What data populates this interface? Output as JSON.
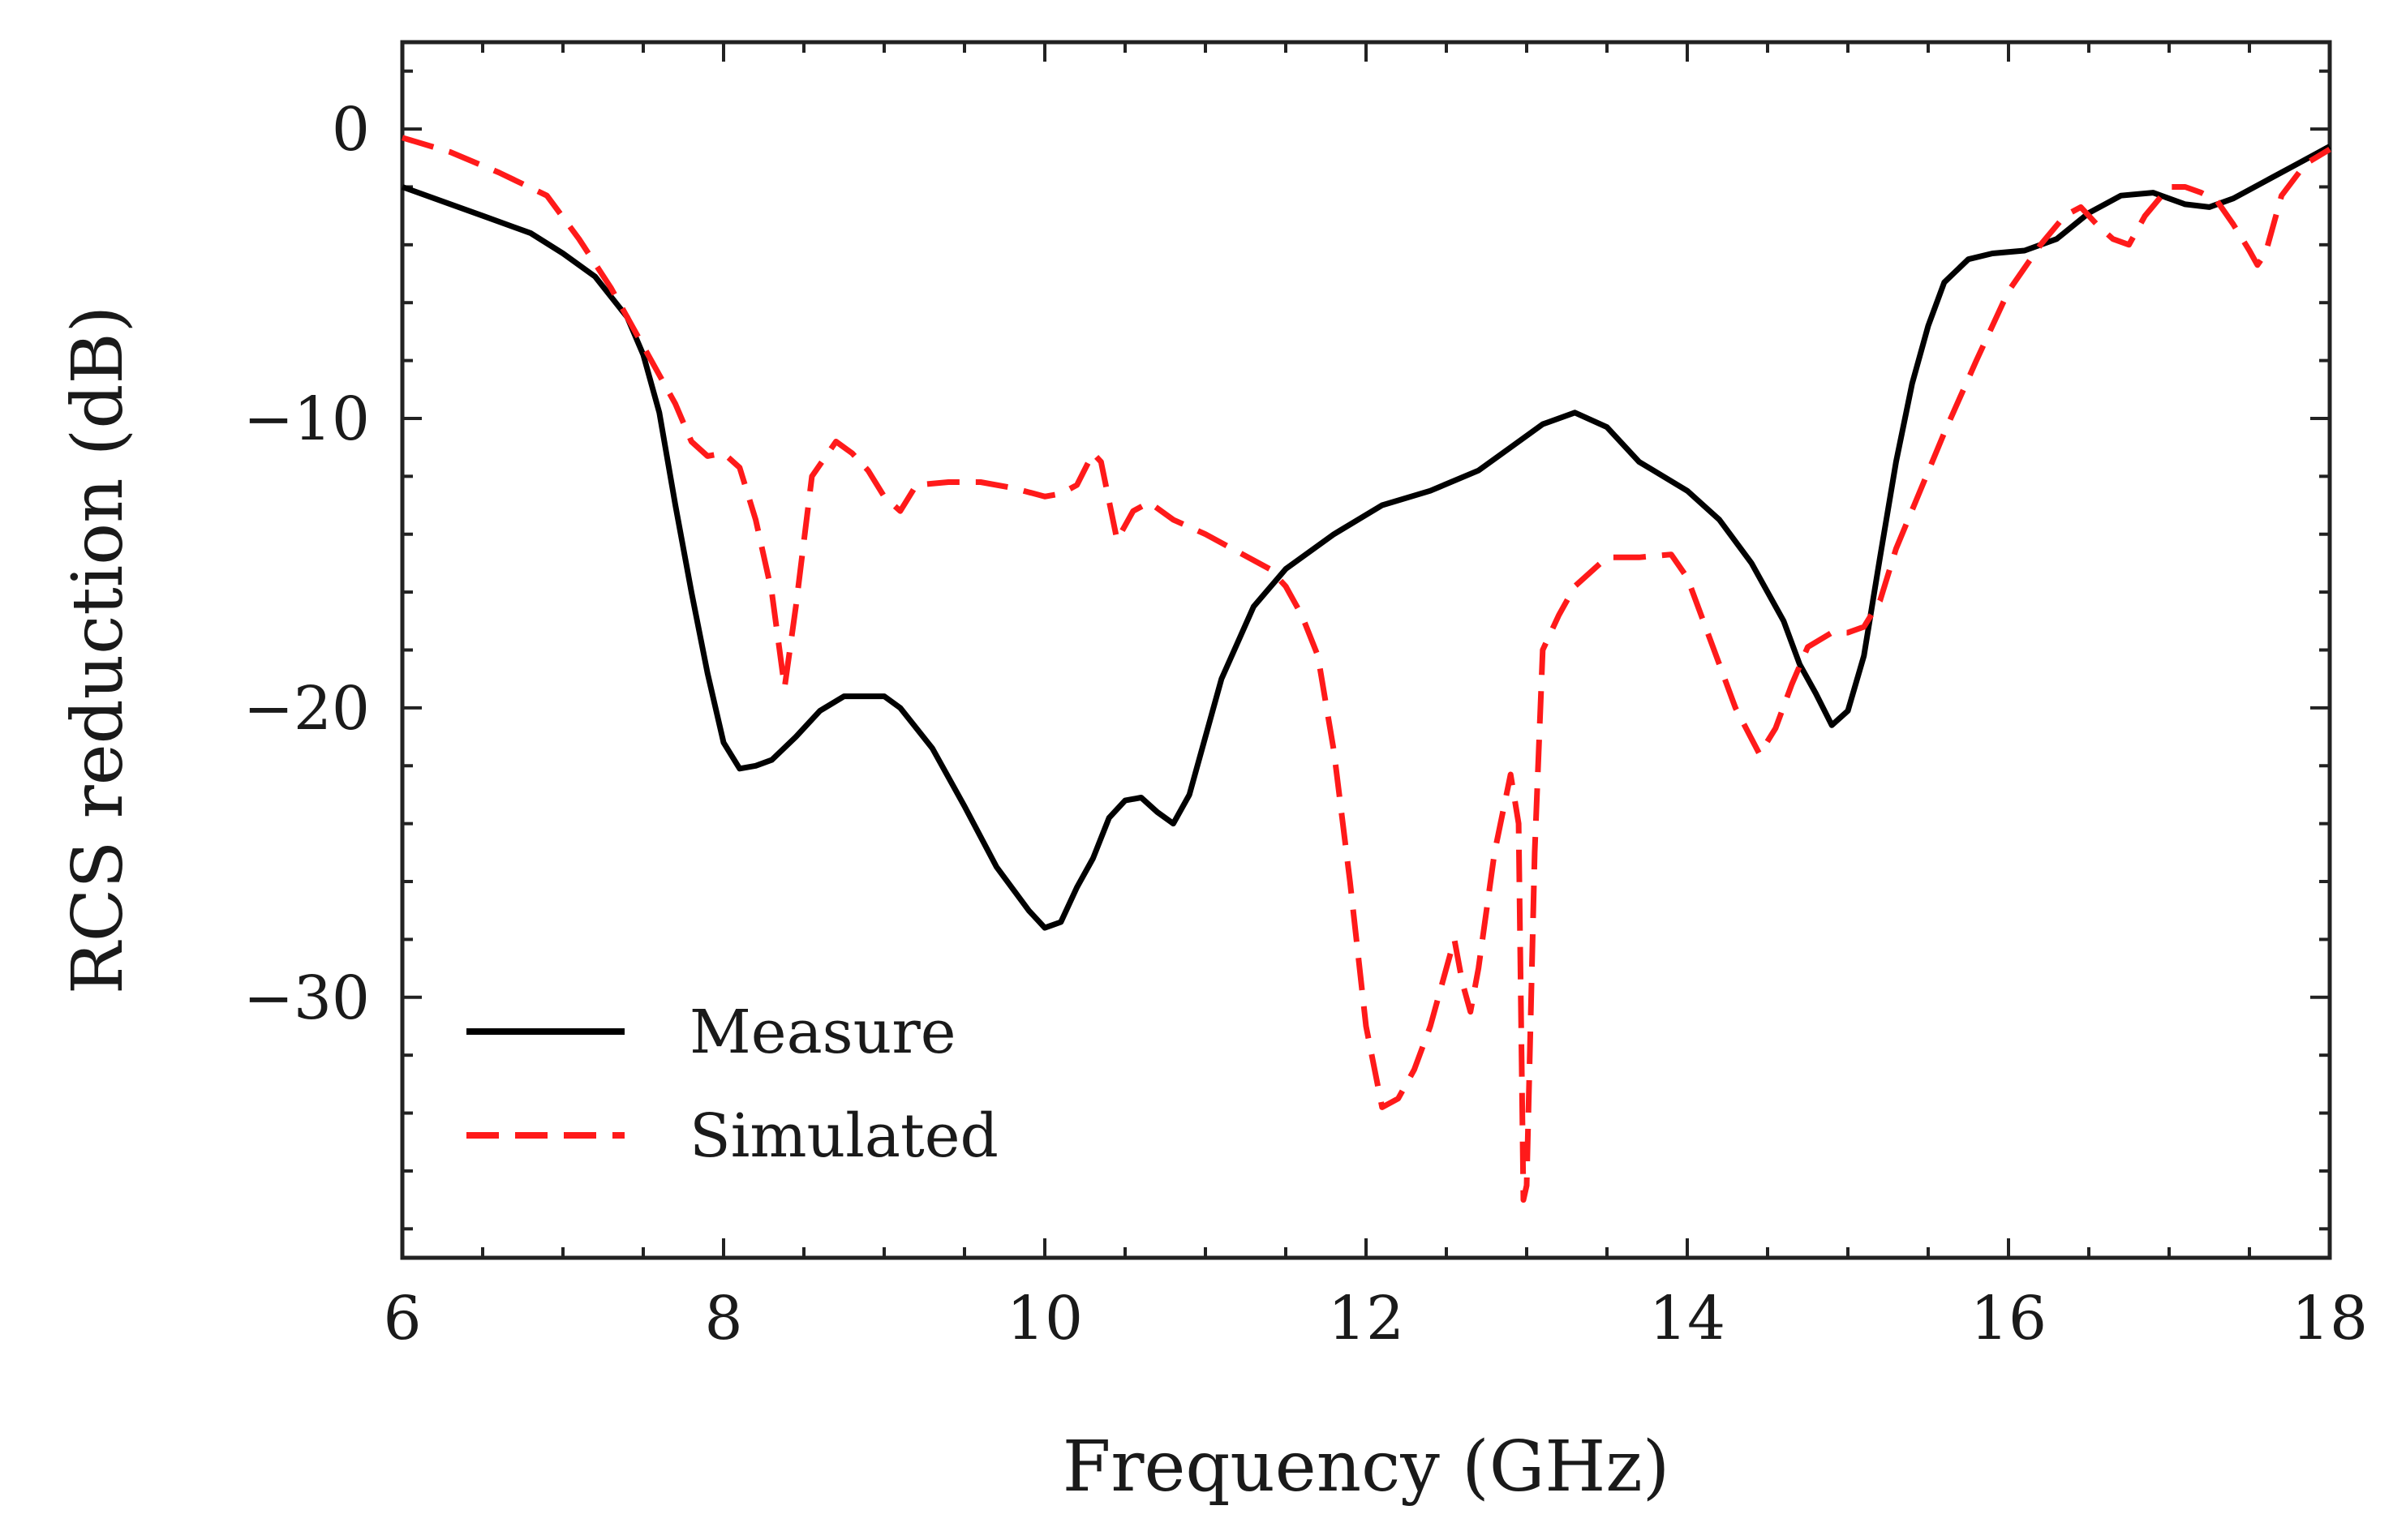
{
  "chart_data": {
    "type": "line",
    "title": "",
    "xlabel": "Frequency (GHz)",
    "ylabel": "RCS reduction (dB)",
    "xlim": [
      6,
      18
    ],
    "ylim": [
      -39,
      3
    ],
    "xticks": [
      6,
      8,
      10,
      12,
      14,
      16,
      18
    ],
    "xtick_labels": [
      "6",
      "8",
      "10",
      "12",
      "14",
      "16",
      "18"
    ],
    "yticks": [
      0,
      -10,
      -20,
      -30
    ],
    "ytick_labels": [
      "0",
      "−10",
      "−20",
      "−30"
    ],
    "x_minor_step": 0.5,
    "y_minor_step": 2,
    "grid": false,
    "legend_position": "lower-left",
    "series": [
      {
        "name": "Measure",
        "color": "#000000",
        "line_style": "solid",
        "x": [
          6.0,
          6.5,
          6.8,
          7.0,
          7.2,
          7.4,
          7.5,
          7.6,
          7.7,
          7.8,
          7.9,
          8.0,
          8.1,
          8.2,
          8.3,
          8.45,
          8.6,
          8.75,
          9.0,
          9.1,
          9.3,
          9.5,
          9.7,
          9.9,
          10.0,
          10.1,
          10.2,
          10.3,
          10.4,
          10.5,
          10.6,
          10.7,
          10.8,
          10.9,
          11.0,
          11.1,
          11.3,
          11.5,
          11.8,
          12.1,
          12.4,
          12.7,
          12.9,
          13.1,
          13.3,
          13.5,
          13.7,
          14.0,
          14.2,
          14.4,
          14.6,
          14.7,
          14.8,
          14.9,
          15.0,
          15.1,
          15.2,
          15.3,
          15.4,
          15.5,
          15.6,
          15.75,
          15.9,
          16.1,
          16.3,
          16.5,
          16.7,
          16.9,
          17.1,
          17.25,
          17.4,
          17.6,
          17.8,
          18.0
        ],
        "y": [
          -2.0,
          -3.0,
          -3.6,
          -4.3,
          -5.1,
          -6.5,
          -7.8,
          -9.8,
          -13.0,
          -16.0,
          -18.8,
          -21.2,
          -22.1,
          -22.0,
          -21.8,
          -21.0,
          -20.1,
          -19.6,
          -19.6,
          -20.0,
          -21.4,
          -23.4,
          -25.5,
          -27.0,
          -27.6,
          -27.4,
          -26.2,
          -25.2,
          -23.8,
          -23.2,
          -23.1,
          -23.6,
          -24.0,
          -23.0,
          -21.0,
          -19.0,
          -16.5,
          -15.2,
          -14.0,
          -13.0,
          -12.5,
          -11.8,
          -11.0,
          -10.2,
          -9.8,
          -10.3,
          -11.5,
          -12.5,
          -13.5,
          -15.0,
          -17.0,
          -18.5,
          -19.5,
          -20.6,
          -20.1,
          -18.2,
          -14.8,
          -11.5,
          -8.8,
          -6.8,
          -5.3,
          -4.5,
          -4.3,
          -4.2,
          -3.8,
          -2.9,
          -2.3,
          -2.2,
          -2.6,
          -2.7,
          -2.4,
          -1.8,
          -1.2,
          -0.6
        ]
      },
      {
        "name": "Simulated",
        "color": "#ff1a1a",
        "line_style": "dashed",
        "x": [
          6.0,
          6.3,
          6.6,
          6.9,
          7.1,
          7.3,
          7.5,
          7.6,
          7.7,
          7.8,
          7.9,
          8.0,
          8.1,
          8.2,
          8.3,
          8.38,
          8.45,
          8.55,
          8.7,
          8.8,
          8.9,
          9.0,
          9.1,
          9.2,
          9.4,
          9.6,
          9.8,
          10.0,
          10.1,
          10.2,
          10.3,
          10.35,
          10.45,
          10.55,
          10.65,
          10.8,
          11.0,
          11.2,
          11.4,
          11.5,
          11.6,
          11.7,
          11.8,
          11.9,
          12.0,
          12.1,
          12.2,
          12.3,
          12.4,
          12.5,
          12.55,
          12.6,
          12.65,
          12.7,
          12.8,
          12.9,
          12.95,
          12.98,
          13.0,
          13.05,
          13.1,
          13.2,
          13.3,
          13.5,
          13.7,
          13.9,
          14.0,
          14.1,
          14.2,
          14.3,
          14.45,
          14.55,
          14.65,
          14.75,
          14.9,
          15.0,
          15.1,
          15.2,
          15.3,
          15.45,
          15.6,
          15.8,
          16.0,
          16.2,
          16.35,
          16.45,
          16.55,
          16.65,
          16.75,
          16.85,
          17.0,
          17.1,
          17.2,
          17.3,
          17.4,
          17.5,
          17.55,
          17.6,
          17.7,
          17.85,
          18.0
        ],
        "y": [
          -0.3,
          -0.8,
          -1.5,
          -2.3,
          -3.8,
          -5.5,
          -7.5,
          -8.5,
          -9.5,
          -10.8,
          -11.3,
          -11.2,
          -11.7,
          -13.5,
          -16.0,
          -19.3,
          -16.5,
          -12.0,
          -10.8,
          -11.2,
          -11.8,
          -12.7,
          -13.2,
          -12.3,
          -12.2,
          -12.2,
          -12.4,
          -12.7,
          -12.6,
          -12.3,
          -11.2,
          -11.5,
          -14.2,
          -13.2,
          -12.9,
          -13.5,
          -14.0,
          -14.6,
          -15.2,
          -15.8,
          -16.8,
          -18.2,
          -21.5,
          -26.0,
          -31.0,
          -33.8,
          -33.5,
          -32.5,
          -31.0,
          -29.0,
          -28.0,
          -29.5,
          -30.5,
          -29.0,
          -25.0,
          -22.3,
          -24.0,
          -37.0,
          -36.5,
          -25.0,
          -18.0,
          -16.8,
          -15.8,
          -14.8,
          -14.8,
          -14.7,
          -15.5,
          -17.0,
          -18.5,
          -20.0,
          -21.6,
          -20.7,
          -19.2,
          -17.9,
          -17.4,
          -17.4,
          -17.2,
          -16.3,
          -14.5,
          -12.5,
          -10.5,
          -8.0,
          -5.6,
          -4.0,
          -3.0,
          -2.7,
          -3.3,
          -3.8,
          -4.0,
          -3.0,
          -2.0,
          -2.0,
          -2.2,
          -2.5,
          -3.3,
          -4.2,
          -4.7,
          -4.3,
          -2.3,
          -1.2,
          -0.7
        ]
      }
    ]
  }
}
